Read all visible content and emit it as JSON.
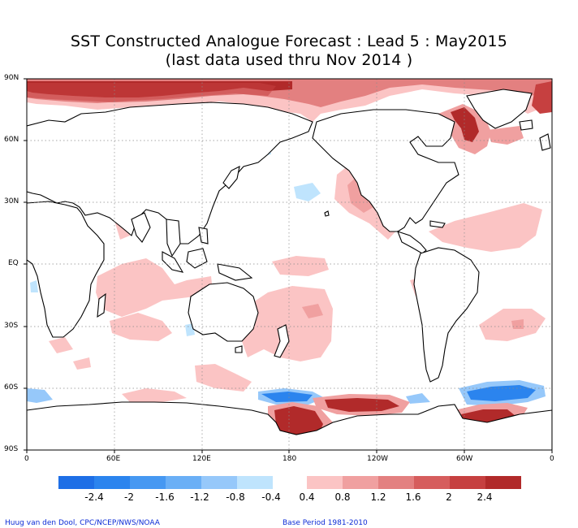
{
  "title": {
    "line1": "SST Constructed Analogue Forecast : Lead 5 : May2015",
    "line2": "(last data used thru Nov 2014 )"
  },
  "map": {
    "projection": "cylindrical equidistant, 0-360E",
    "y_ticks": [
      "90N",
      "60N",
      "30N",
      "EQ",
      "30S",
      "60S",
      "90S"
    ],
    "x_ticks": [
      "0",
      "60E",
      "120E",
      "180",
      "120W",
      "60W",
      "0"
    ],
    "grid": "dotted lines every 30 degrees",
    "land_fill": "#ffffff",
    "coast_color": "#000000",
    "anomaly_regions": [
      {
        "region": "Arctic Ocean / north of Eurasia",
        "sign": "positive",
        "max_level": 2.4
      },
      {
        "region": "Baffin Bay / Labrador Sea",
        "sign": "positive",
        "max_level": 2.4
      },
      {
        "region": "Hudson Bay",
        "sign": "positive",
        "max_level": 2.0
      },
      {
        "region": "NE Pacific",
        "sign": "positive",
        "max_level": 1.2
      },
      {
        "region": "Tropical North Atlantic",
        "sign": "positive",
        "max_level": 0.8
      },
      {
        "region": "Indian Ocean / Maritime Continent",
        "sign": "positive",
        "max_level": 0.4
      },
      {
        "region": "Tropical and South Pacific",
        "sign": "positive",
        "max_level": 0.8
      },
      {
        "region": "South Atlantic",
        "sign": "positive",
        "max_level": 0.8
      },
      {
        "region": "Ross Sea / Amundsen Sea",
        "sign": "positive",
        "max_level": 2.4
      },
      {
        "region": "Weddell Sea",
        "sign": "positive",
        "max_level": 2.4
      },
      {
        "region": "Southern Ocean 60S band",
        "sign": "negative",
        "max_level": -1.6
      },
      {
        "region": "Central North Pacific",
        "sign": "negative",
        "max_level": -0.4
      }
    ]
  },
  "colorbar": {
    "labels": [
      "-2.4",
      "-2",
      "-1.6",
      "-1.2",
      "-0.8",
      "-0.4",
      "0.4",
      "0.8",
      "1.2",
      "1.6",
      "2",
      "2.4"
    ],
    "negative_colors": [
      "#1e6fe6",
      "#2b84ee",
      "#4698f2",
      "#6aaff6",
      "#96c8fa",
      "#bfe4fd"
    ],
    "positive_colors": [
      "#fbc4c4",
      "#f0a0a0",
      "#e38080",
      "#d65d5d",
      "#c64040",
      "#b12a2a"
    ]
  },
  "credits": {
    "left": "Huug van den Dool, CPC/NCEP/NWS/NOAA",
    "right": "Base Period 1981-2010"
  }
}
